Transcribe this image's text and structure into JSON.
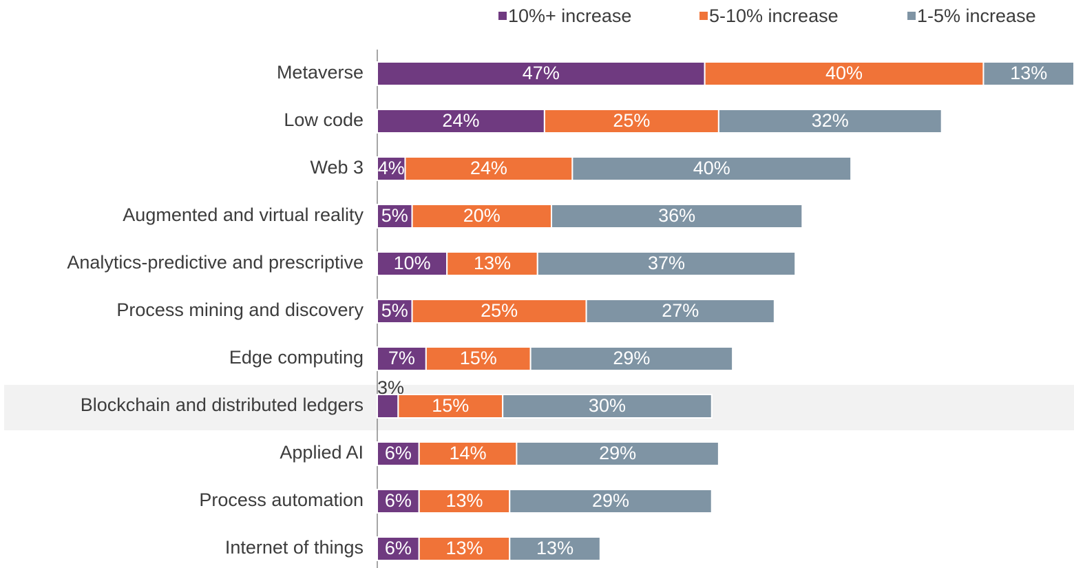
{
  "chart_data": {
    "type": "stacked-bar-horizontal",
    "categories": [
      "Metaverse",
      "Low code",
      "Web 3",
      "Augmented and virtual reality",
      "Analytics-predictive and prescriptive",
      "Process mining and discovery",
      "Edge computing",
      "Blockchain and distributed ledgers",
      "Applied AI",
      "Process automation",
      "Internet of things"
    ],
    "series": [
      {
        "name": "10%+ increase",
        "color": "#6f3a80",
        "values": [
          47,
          24,
          4,
          5,
          10,
          5,
          7,
          3,
          6,
          6,
          6
        ],
        "value_labels": [
          "47%",
          "24%",
          "4%",
          "5%",
          "10%",
          "5%",
          "7%",
          "3%",
          "6%",
          "6%",
          "6%"
        ]
      },
      {
        "name": "5-10% increase",
        "color": "#f07338",
        "values": [
          40,
          25,
          24,
          20,
          13,
          25,
          15,
          15,
          14,
          13,
          13
        ],
        "value_labels": [
          "40%",
          "25%",
          "24%",
          "20%",
          "13%",
          "25%",
          "15%",
          "15%",
          "14%",
          "13%",
          "13%"
        ]
      },
      {
        "name": "1-5% increase",
        "color": "#7f94a4",
        "values": [
          13,
          32,
          40,
          36,
          37,
          27,
          29,
          30,
          29,
          29,
          13
        ],
        "value_labels": [
          "13%",
          "32%",
          "40%",
          "36%",
          "37%",
          "27%",
          "29%",
          "30%",
          "29%",
          "29%",
          "13%"
        ]
      }
    ],
    "legend": "top-right"
  }
}
